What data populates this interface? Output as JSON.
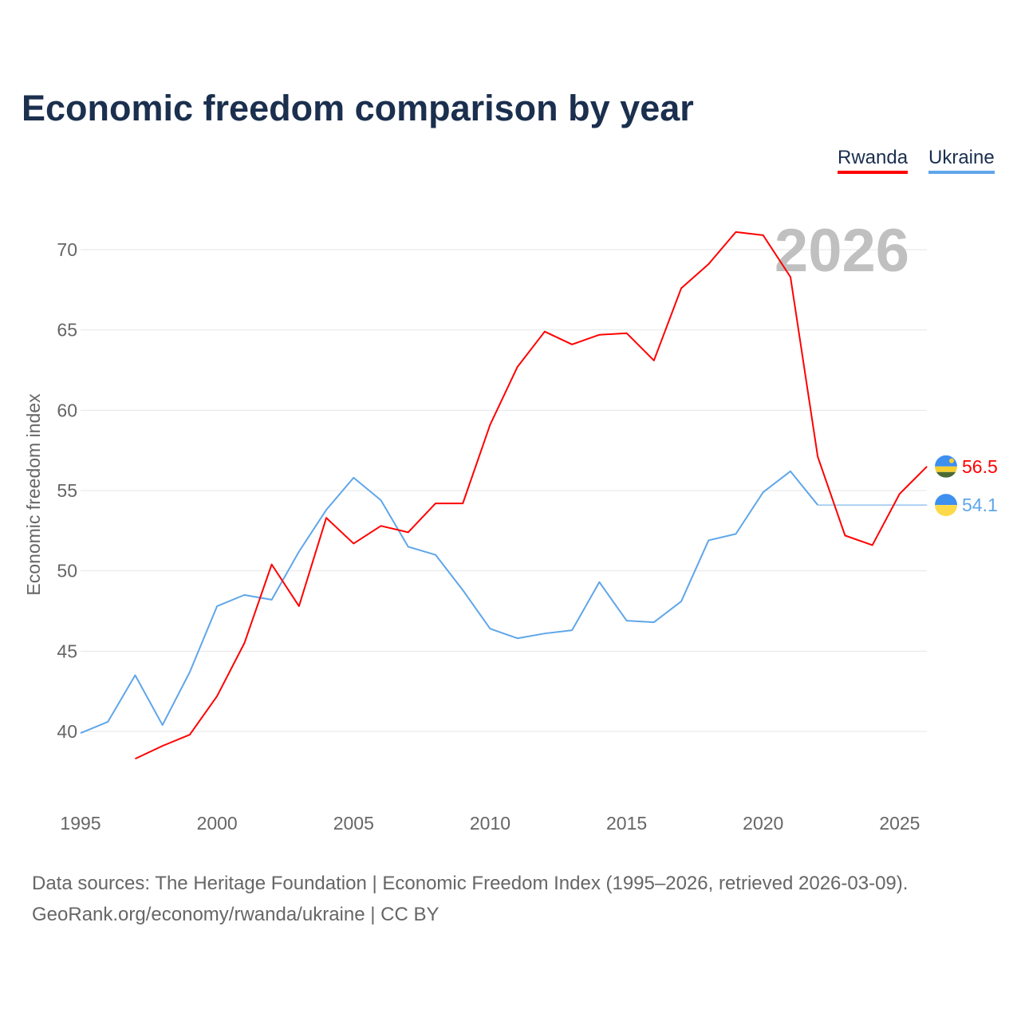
{
  "title": "Economic freedom comparison by year",
  "legend": [
    {
      "label": "Rwanda",
      "color": "#ff0000"
    },
    {
      "label": "Ukraine",
      "color": "#5fa6ea"
    }
  ],
  "year_label": "2026",
  "footer": {
    "line1": "Data sources: The Heritage Foundation | Economic Freedom Index (1995–2026, retrieved 2026-03-09).",
    "line2": "GeoRank.org/economy/rwanda/ukraine | CC BY"
  },
  "chart_data": {
    "type": "line",
    "ylabel": "Economic freedom index",
    "xlim": [
      1995,
      2026
    ],
    "ylim": [
      35,
      73
    ],
    "xticks": [
      1995,
      2000,
      2005,
      2010,
      2015,
      2020,
      2025
    ],
    "yticks": [
      40,
      45,
      50,
      55,
      60,
      65,
      70
    ],
    "grid": true,
    "legend_position": "top-right",
    "series": [
      {
        "name": "Rwanda",
        "color": "#ff0000",
        "end_label": "56.5",
        "x": [
          1997,
          1998,
          1999,
          2000,
          2001,
          2002,
          2003,
          2004,
          2005,
          2006,
          2007,
          2008,
          2009,
          2010,
          2011,
          2012,
          2013,
          2014,
          2015,
          2016,
          2017,
          2018,
          2019,
          2020,
          2021,
          2022,
          2023,
          2024,
          2025,
          2026
        ],
        "y": [
          38.3,
          39.1,
          39.8,
          42.2,
          45.5,
          50.4,
          47.8,
          53.3,
          51.7,
          52.8,
          52.4,
          54.2,
          54.2,
          59.1,
          62.7,
          64.9,
          64.1,
          64.7,
          64.8,
          63.1,
          67.6,
          69.1,
          71.1,
          70.9,
          68.3,
          57.1,
          52.2,
          51.6,
          54.8,
          56.5
        ]
      },
      {
        "name": "Ukraine",
        "color": "#5fa6ea",
        "end_label": "54.1",
        "x": [
          1995,
          1996,
          1997,
          1998,
          1999,
          2000,
          2001,
          2002,
          2003,
          2004,
          2005,
          2006,
          2007,
          2008,
          2009,
          2010,
          2011,
          2012,
          2013,
          2014,
          2015,
          2016,
          2017,
          2018,
          2019,
          2020,
          2021,
          2022
        ],
        "y": [
          39.9,
          40.6,
          43.5,
          40.4,
          43.7,
          47.8,
          48.5,
          48.2,
          51.2,
          53.8,
          55.8,
          54.4,
          51.5,
          51.0,
          48.8,
          46.4,
          45.8,
          46.1,
          46.3,
          49.3,
          46.9,
          46.8,
          48.1,
          51.9,
          52.3,
          54.9,
          56.2,
          54.1
        ]
      }
    ]
  }
}
